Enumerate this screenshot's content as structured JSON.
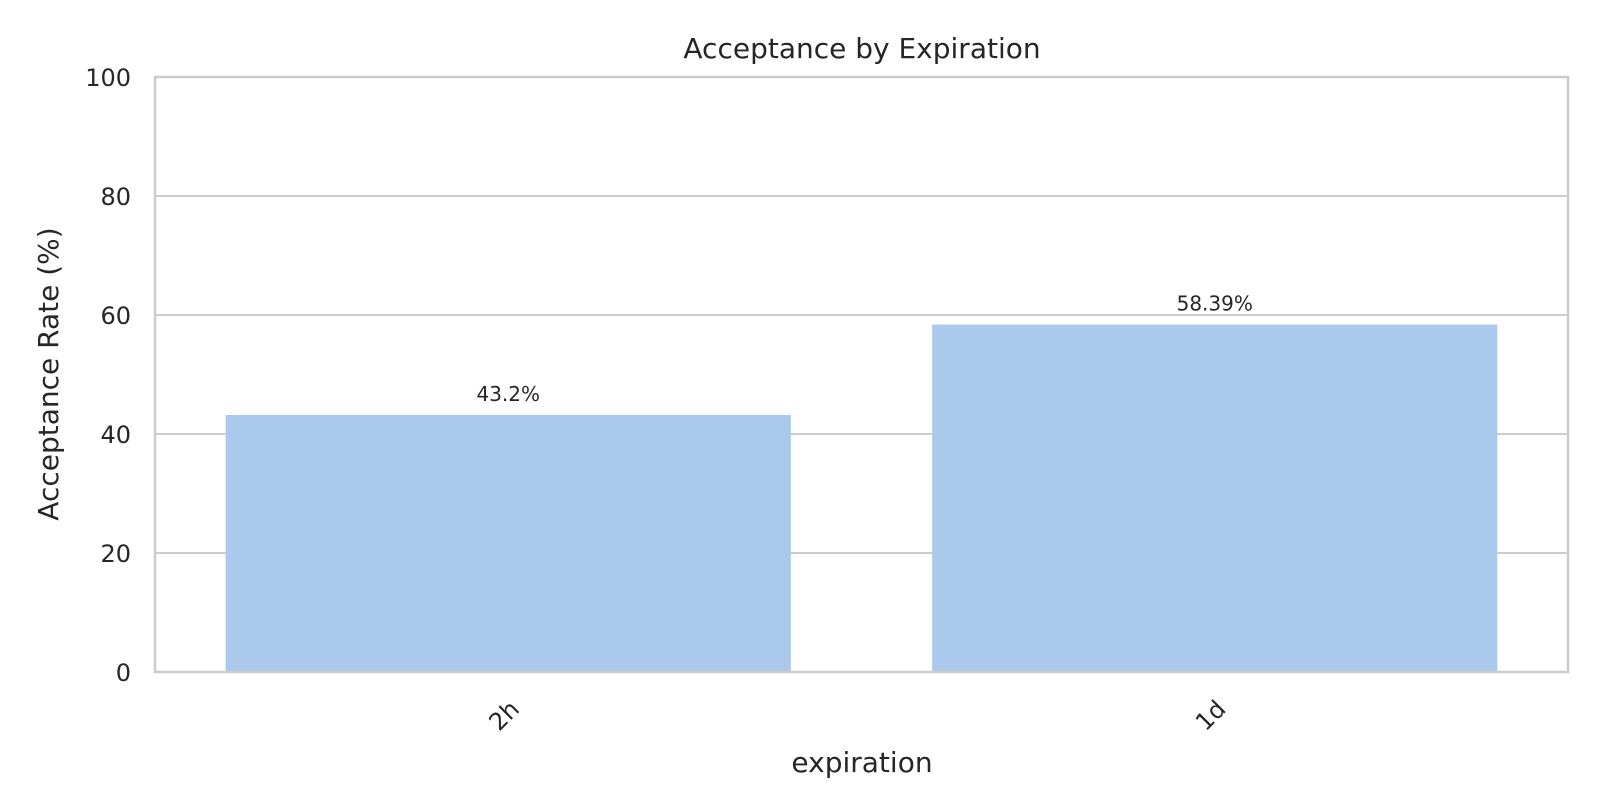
{
  "chart_data": {
    "type": "bar",
    "title": "Acceptance by Expiration",
    "xlabel": "expiration",
    "ylabel": "Acceptance Rate (%)",
    "categories": [
      "2h",
      "1d"
    ],
    "values": [
      43.2,
      58.39
    ],
    "data_labels": [
      "43.2%",
      "58.39%"
    ],
    "ylim": [
      0,
      100
    ],
    "yticks": [
      0,
      20,
      40,
      60,
      80,
      100
    ],
    "grid": "horizontal",
    "x_tick_rotation": -45,
    "colors": {
      "bar": "#abc9ec",
      "grid": "#cccccc",
      "text": "#262626",
      "background": "#ffffff"
    }
  }
}
